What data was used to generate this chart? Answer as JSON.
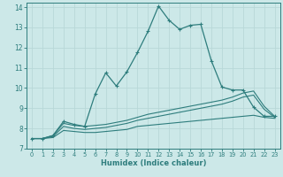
{
  "xlabel": "Humidex (Indice chaleur)",
  "bg_color": "#cce8e8",
  "grid_color": "#b8d8d8",
  "line_color": "#2e7d7d",
  "xlim": [
    -0.5,
    23.5
  ],
  "ylim": [
    7,
    14.2
  ],
  "xticks": [
    0,
    1,
    2,
    3,
    4,
    5,
    6,
    7,
    8,
    9,
    10,
    11,
    12,
    13,
    14,
    15,
    16,
    17,
    18,
    19,
    20,
    21,
    22,
    23
  ],
  "yticks": [
    7,
    8,
    9,
    10,
    11,
    12,
    13,
    14
  ],
  "series1": {
    "x": [
      0,
      1,
      2,
      3,
      4,
      5,
      6,
      7,
      8,
      9,
      10,
      11,
      12,
      13,
      14,
      15,
      16,
      17,
      18,
      19,
      20,
      21,
      22,
      23
    ],
    "y": [
      7.5,
      7.5,
      7.65,
      8.35,
      8.2,
      8.1,
      9.7,
      10.75,
      10.1,
      10.8,
      11.75,
      12.8,
      14.05,
      13.35,
      12.9,
      13.1,
      13.15,
      11.35,
      10.05,
      9.9,
      9.9,
      9.05,
      8.6,
      8.6
    ]
  },
  "series2": {
    "x": [
      0,
      1,
      2,
      3,
      4,
      5,
      6,
      7,
      8,
      9,
      10,
      11,
      12,
      13,
      14,
      15,
      16,
      17,
      18,
      19,
      20,
      21,
      22,
      23
    ],
    "y": [
      7.5,
      7.5,
      7.65,
      8.25,
      8.15,
      8.1,
      8.15,
      8.2,
      8.3,
      8.4,
      8.55,
      8.7,
      8.8,
      8.9,
      9.0,
      9.1,
      9.2,
      9.3,
      9.4,
      9.55,
      9.75,
      9.85,
      9.1,
      8.6
    ]
  },
  "series3": {
    "x": [
      0,
      1,
      2,
      3,
      4,
      5,
      6,
      7,
      8,
      9,
      10,
      11,
      12,
      13,
      14,
      15,
      16,
      17,
      18,
      19,
      20,
      21,
      22,
      23
    ],
    "y": [
      7.5,
      7.5,
      7.6,
      8.1,
      8.0,
      7.95,
      8.0,
      8.05,
      8.15,
      8.25,
      8.4,
      8.5,
      8.6,
      8.7,
      8.8,
      8.9,
      9.0,
      9.1,
      9.2,
      9.35,
      9.55,
      9.65,
      8.95,
      8.55
    ]
  },
  "series4": {
    "x": [
      0,
      1,
      2,
      3,
      4,
      5,
      6,
      7,
      8,
      9,
      10,
      11,
      12,
      13,
      14,
      15,
      16,
      17,
      18,
      19,
      20,
      21,
      22,
      23
    ],
    "y": [
      7.5,
      7.5,
      7.55,
      7.9,
      7.85,
      7.8,
      7.8,
      7.85,
      7.9,
      7.95,
      8.1,
      8.15,
      8.2,
      8.25,
      8.3,
      8.35,
      8.4,
      8.45,
      8.5,
      8.55,
      8.6,
      8.65,
      8.55,
      8.5
    ]
  }
}
